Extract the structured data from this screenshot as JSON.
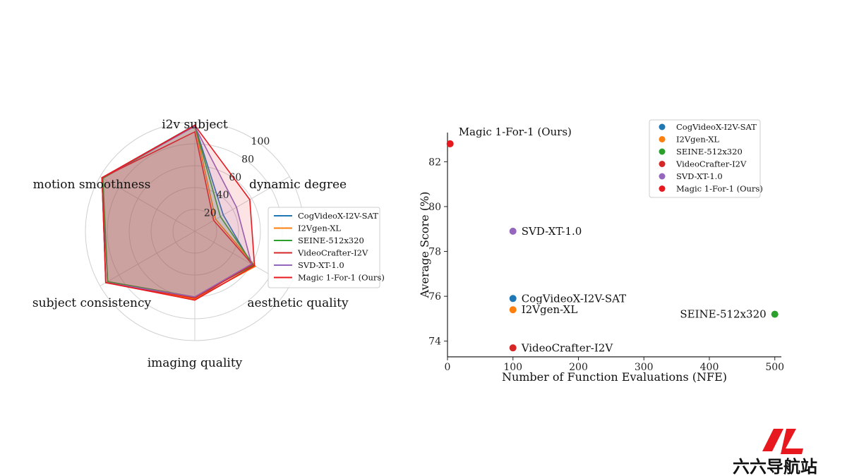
{
  "radar": {
    "type": "radar",
    "axes": [
      "i2v subject",
      "dynamic degree",
      "aesthetic quality",
      "imaging quality",
      "subject consistency",
      "motion smoothness"
    ],
    "rticks": [
      "20",
      "40",
      "60",
      "80",
      "100"
    ],
    "rticks_values": [
      20,
      40,
      60,
      80,
      100
    ],
    "rmax": 100,
    "series": [
      {
        "name": "CogVideoX-I2V-SAT",
        "color": "#1f77b4",
        "values": [
          97.2,
          30.0,
          60.0,
          62.0,
          92.0,
          98.0
        ]
      },
      {
        "name": "I2Vgen-XL",
        "color": "#ff7f0e",
        "values": [
          97.0,
          22.0,
          64.0,
          62.0,
          94.0,
          98.0
        ]
      },
      {
        "name": "SEINE-512x320",
        "color": "#2ca02c",
        "values": [
          96.5,
          27.0,
          62.0,
          60.0,
          92.0,
          97.0
        ]
      },
      {
        "name": "VideoCrafter-I2V",
        "color": "#d62728",
        "values": [
          91.0,
          20.0,
          61.0,
          61.0,
          94.0,
          98.0
        ]
      },
      {
        "name": "SVD-XT-1.0",
        "color": "#9467bd",
        "values": [
          96.0,
          44.0,
          60.0,
          60.0,
          94.0,
          98.0
        ]
      },
      {
        "name": "Magic 1-For-1 (Ours)",
        "color": "#e8191e",
        "values": [
          97.0,
          58.0,
          63.0,
          63.0,
          94.0,
          98.0
        ]
      }
    ]
  },
  "scatter": {
    "type": "scatter",
    "xlabel": "Number of Function Evaluations (NFE)",
    "ylabel": "Average Score (%)",
    "xlim": [
      0,
      510
    ],
    "ylim": [
      73.3,
      83.3
    ],
    "xticks": [
      0,
      100,
      200,
      300,
      400,
      500
    ],
    "yticks": [
      74,
      76,
      78,
      80,
      82
    ],
    "points": [
      {
        "name": "CogVideoX-I2V-SAT",
        "x": 100,
        "y": 75.9,
        "color": "#1f77b4"
      },
      {
        "name": "I2Vgen-XL",
        "x": 100,
        "y": 75.4,
        "color": "#ff7f0e"
      },
      {
        "name": "SEINE-512x320",
        "x": 500,
        "y": 75.2,
        "color": "#2ca02c"
      },
      {
        "name": "VideoCrafter-I2V",
        "x": 100,
        "y": 73.7,
        "color": "#d62728"
      },
      {
        "name": "SVD-XT-1.0",
        "x": 100,
        "y": 78.9,
        "color": "#9467bd"
      },
      {
        "name": "Magic 1-For-1 (Ours)",
        "x": 4,
        "y": 82.8,
        "color": "#e8191e"
      }
    ]
  },
  "watermark": {
    "text": "六六导航站",
    "color": "#e8191e"
  },
  "chart_data": [
    {
      "type": "radar",
      "categories": [
        "i2v subject",
        "dynamic degree",
        "aesthetic quality",
        "imaging quality",
        "subject consistency",
        "motion smoothness"
      ],
      "ylim": [
        0,
        100
      ],
      "grid": true,
      "legend": "right",
      "series": [
        {
          "name": "CogVideoX-I2V-SAT",
          "values": [
            97.2,
            30.0,
            60.0,
            62.0,
            92.0,
            98.0
          ]
        },
        {
          "name": "I2Vgen-XL",
          "values": [
            97.0,
            22.0,
            64.0,
            62.0,
            94.0,
            98.0
          ]
        },
        {
          "name": "SEINE-512x320",
          "values": [
            96.5,
            27.0,
            62.0,
            60.0,
            92.0,
            97.0
          ]
        },
        {
          "name": "VideoCrafter-I2V",
          "values": [
            91.0,
            20.0,
            61.0,
            61.0,
            94.0,
            98.0
          ]
        },
        {
          "name": "SVD-XT-1.0",
          "values": [
            96.0,
            44.0,
            60.0,
            60.0,
            94.0,
            98.0
          ]
        },
        {
          "name": "Magic 1-For-1 (Ours)",
          "values": [
            97.0,
            58.0,
            63.0,
            63.0,
            94.0,
            98.0
          ]
        }
      ]
    },
    {
      "type": "scatter",
      "xlabel": "Number of Function Evaluations (NFE)",
      "ylabel": "Average Score (%)",
      "xlim": [
        0,
        510
      ],
      "ylim": [
        73.3,
        83.3
      ],
      "legend": "top-right",
      "series": [
        {
          "name": "CogVideoX-I2V-SAT",
          "x": [
            100
          ],
          "y": [
            75.9
          ]
        },
        {
          "name": "I2Vgen-XL",
          "x": [
            100
          ],
          "y": [
            75.4
          ]
        },
        {
          "name": "SEINE-512x320",
          "x": [
            500
          ],
          "y": [
            75.2
          ]
        },
        {
          "name": "VideoCrafter-I2V",
          "x": [
            100
          ],
          "y": [
            73.7
          ]
        },
        {
          "name": "SVD-XT-1.0",
          "x": [
            100
          ],
          "y": [
            78.9
          ]
        },
        {
          "name": "Magic 1-For-1 (Ours)",
          "x": [
            4
          ],
          "y": [
            82.8
          ]
        }
      ]
    }
  ]
}
